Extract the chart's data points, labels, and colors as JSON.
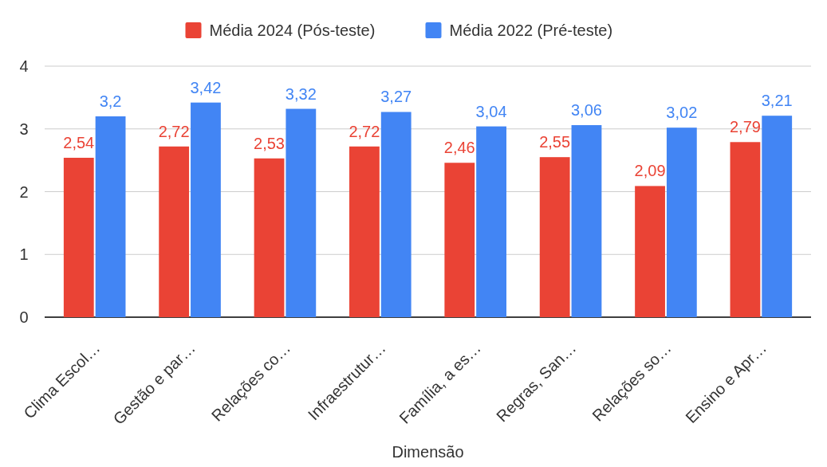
{
  "chart_data": {
    "type": "bar",
    "xlabel": "Dimensão",
    "categories": [
      "Clima Escol…",
      "Gestão e par…",
      "Relações co…",
      "Infraestrutur…",
      "Família, a es…",
      "Regras, San…",
      "Relações so…",
      "Ensino e Apr…"
    ],
    "series": [
      {
        "name": "Média 2024 (Pós-teste)",
        "color": "#ea4335",
        "values": [
          2.54,
          2.72,
          2.53,
          2.72,
          2.46,
          2.55,
          2.09,
          2.79
        ],
        "value_labels": [
          "2,54",
          "2,72",
          "2,53",
          "2,72",
          "2,46",
          "2,55",
          "2,09",
          "2,79"
        ]
      },
      {
        "name": "Média 2022 (Pré-teste)",
        "color": "#4285f4",
        "values": [
          3.2,
          3.42,
          3.32,
          3.27,
          3.04,
          3.06,
          3.02,
          3.21
        ],
        "value_labels": [
          "3,2",
          "3,42",
          "3,32",
          "3,27",
          "3,04",
          "3,06",
          "3,02",
          "3,21"
        ]
      }
    ],
    "ylim": [
      0,
      4
    ],
    "yticks": [
      0,
      1,
      2,
      3,
      4
    ],
    "grid": "y",
    "legend": "top"
  }
}
